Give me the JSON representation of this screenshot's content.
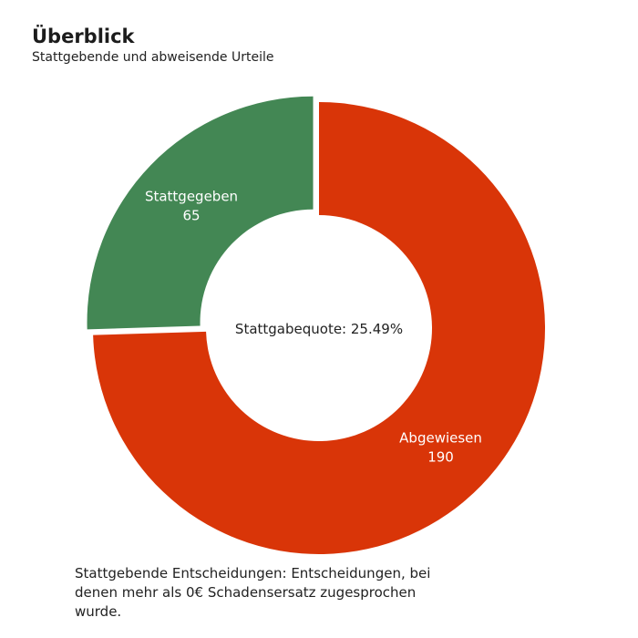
{
  "header": {
    "title": "Überblick",
    "subtitle": "Stattgebende und abweisende Urteile"
  },
  "chart_data": {
    "type": "pie",
    "style": "donut",
    "title": "Überblick",
    "subtitle": "Stattgebende und abweisende Urteile",
    "center_label": "Stattgabequote: 25.49%",
    "slices": [
      {
        "label": "Abgewiesen",
        "value": 190,
        "color": "#d93508"
      },
      {
        "label": "Stattgegeben",
        "value": 65,
        "color": "#438754",
        "exploded": true
      }
    ],
    "legend": "none"
  },
  "footnote": "Stattgebende Entscheidungen: Entscheidungen, bei denen mehr als 0€ Schadensersatz zugesprochen wurde."
}
